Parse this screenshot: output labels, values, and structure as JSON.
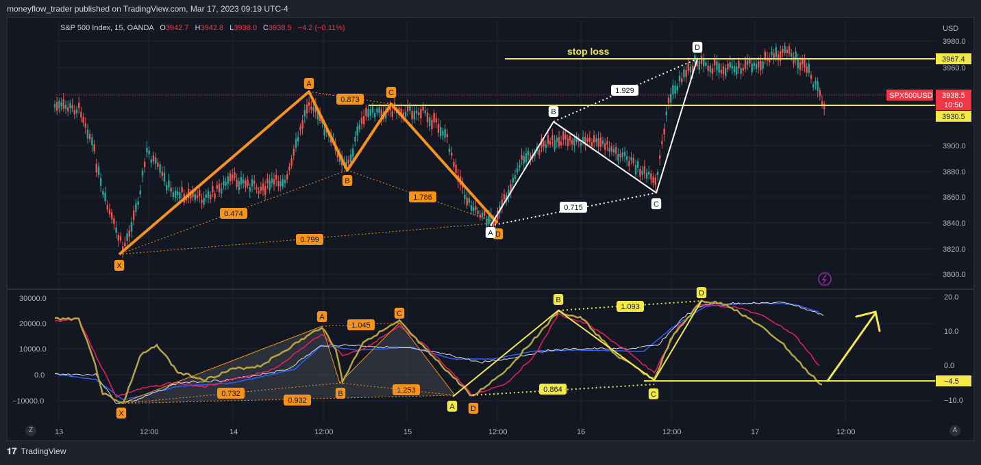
{
  "header": {
    "publish_line": "moneyflow_trader published on TradingView.com, Mar 17, 2023 09:19 UTC-4"
  },
  "legend": {
    "symbol": "S&P 500 Index, 15, OANDA",
    "o_label": "O",
    "o_value": "3942.7",
    "h_label": "H",
    "h_value": "3942.8",
    "l_label": "L",
    "l_value": "3938.0",
    "c_label": "C",
    "c_value": "3938.5",
    "change": "−4.2 (−0.11%)"
  },
  "price_axis": {
    "currency": "USD",
    "ticks": [
      "3980.0",
      "3960.0",
      "3900.0",
      "3880.0",
      "3860.0",
      "3840.0",
      "3820.0",
      "3800.0"
    ],
    "labels": {
      "stop": "3967.4",
      "symbol": "SPX500USD",
      "last": "3938.5",
      "countdown": "10:50",
      "support": "3930.5"
    }
  },
  "osc_axis": {
    "left_ticks": [
      "30000.0",
      "20000.0",
      "10000.0",
      "0.0",
      "−10000.0"
    ],
    "right_ticks": [
      "20.0",
      "10.0",
      "0.0",
      "−10.0"
    ],
    "level_label": "−4.5"
  },
  "time_axis": {
    "ticks": [
      "13",
      "12:00",
      "14",
      "12:00",
      "15",
      "12:00",
      "16",
      "12:00",
      "17",
      "12:00"
    ]
  },
  "annotations": {
    "stop_loss": "stop loss",
    "orange_price": {
      "X": "X",
      "A": "A",
      "B": "B",
      "C": "C",
      "D": "D",
      "r1": "0.474",
      "r2": "0.873",
      "r3": "1.786",
      "r4": "0.799"
    },
    "white_price": {
      "A": "A",
      "B": "B",
      "C": "C",
      "D": "D",
      "r1": "1.929",
      "r2": "0.715"
    },
    "orange_osc": {
      "X": "X",
      "A": "A",
      "B": "B",
      "C": "C",
      "D": "D",
      "r1": "1.045",
      "r2": "0.732",
      "r3": "0.932",
      "r4": "1.253"
    },
    "yellow_osc": {
      "A": "A",
      "B": "B",
      "C": "C",
      "D": "D",
      "r1": "1.093",
      "r2": "0.864"
    }
  },
  "buttons": {
    "zoom_left": "Z",
    "auto": "A"
  },
  "footer": {
    "brand": "TradingView"
  },
  "colors": {
    "up": "#26a69a",
    "down": "#ef5350",
    "orange": "#f7931a",
    "yellow": "#f5e94a",
    "white": "#ffffff",
    "magenta": "#e91e63",
    "blue": "#2962ff"
  }
}
